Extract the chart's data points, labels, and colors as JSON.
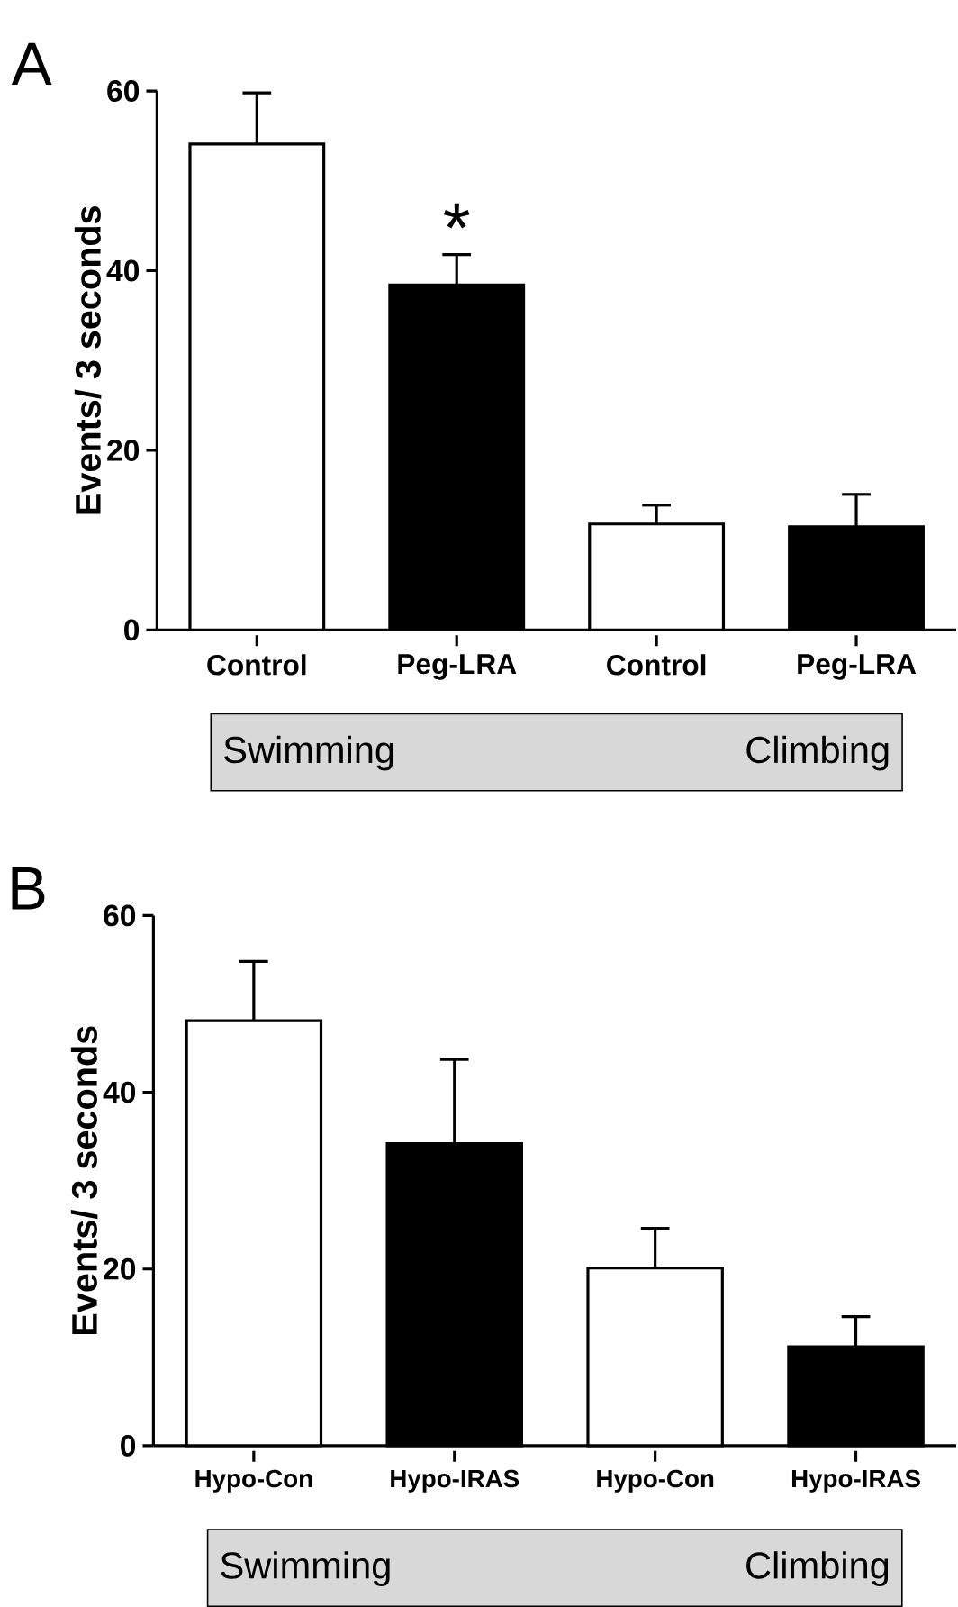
{
  "chart_data": [
    {
      "type": "bar",
      "title": "A",
      "ylabel": "Events/ 3 seconds",
      "categories": [
        "Control",
        "Peg-LRA",
        "Control",
        "Peg-LRA"
      ],
      "values": [
        54.1,
        38.4,
        11.8,
        11.5
      ],
      "colors": [
        "#ffffff",
        "#000000",
        "#ffffff",
        "#000000"
      ],
      "errors": [
        [
          54.1,
          59.8
        ],
        [
          38.4,
          41.8
        ],
        [
          11.8,
          13.9
        ],
        [
          11.5,
          15.1
        ]
      ],
      "ylim": [
        0,
        60
      ],
      "yticks": [
        0,
        20,
        40,
        60
      ],
      "annotations": [
        {
          "text": "*",
          "x": "Peg-LRA",
          "y": 41.8
        },
        "Swimming",
        "Climbing"
      ]
    },
    {
      "type": "bar",
      "title": "B",
      "ylabel": "Events/ 3 seconds",
      "categories": [
        "Hypo-Con",
        "Hypo-IRAS",
        "Hypo-Con",
        "Hypo-IRAS"
      ],
      "values": [
        48.1,
        34.2,
        20.1,
        11.2
      ],
      "colors": [
        "#ffffff",
        "#000000",
        "#ffffff",
        "#000000"
      ],
      "errors": [
        [
          48.1,
          54.8
        ],
        [
          34.2,
          43.7
        ],
        [
          20.1,
          24.6
        ],
        [
          11.2,
          14.6
        ]
      ],
      "ylim": [
        0,
        60
      ],
      "yticks": [
        0,
        20,
        40,
        60
      ],
      "annotations": [
        "Swimming",
        "Climbing"
      ]
    }
  ]
}
